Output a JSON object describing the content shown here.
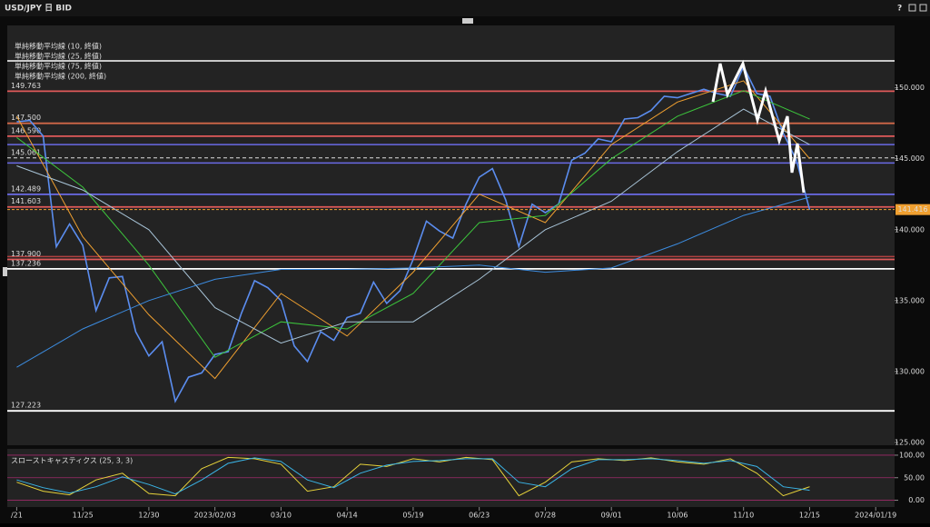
{
  "window": {
    "title": "USD/JPY 日 BID"
  },
  "chart_data": [
    {
      "type": "line",
      "xlim": [
        -5,
        465
      ],
      "ylim": [
        124.8,
        154.4
      ],
      "xticks": [
        {
          "value": 0,
          "label": "/21"
        },
        {
          "value": 35,
          "label": "11/25"
        },
        {
          "value": 70,
          "label": "12/30"
        },
        {
          "value": 105,
          "label": "2023/02/03"
        },
        {
          "value": 140,
          "label": "03/10"
        },
        {
          "value": 175,
          "label": "04/14"
        },
        {
          "value": 210,
          "label": "05/19"
        },
        {
          "value": 245,
          "label": "06/23"
        },
        {
          "value": 280,
          "label": "07/28"
        },
        {
          "value": 315,
          "label": "09/01"
        },
        {
          "value": 350,
          "label": "10/06"
        },
        {
          "value": 385,
          "label": "11/10"
        },
        {
          "value": 420,
          "label": "12/15"
        },
        {
          "value": 455,
          "label": "2024/01/19"
        }
      ],
      "yticks": [
        {
          "value": 125,
          "label": "125.000"
        },
        {
          "value": 130,
          "label": "130.000"
        },
        {
          "value": 135,
          "label": "135.000"
        },
        {
          "value": 140,
          "label": "140.000"
        },
        {
          "value": 145,
          "label": "145.000"
        },
        {
          "value": 150,
          "label": "150.000"
        }
      ],
      "series": [
        {
          "color": "#5b8def",
          "x": [
            0,
            7,
            14,
            21,
            28,
            35,
            42,
            49,
            56,
            63,
            70,
            77,
            84,
            91,
            98,
            105,
            112,
            119,
            126,
            133,
            140,
            147,
            154,
            161,
            168,
            175,
            182,
            189,
            196,
            203,
            210,
            217,
            224,
            231,
            238,
            245,
            252,
            259,
            266,
            273,
            280,
            287,
            294,
            301,
            308,
            315,
            322,
            329,
            336,
            343,
            350,
            357,
            364,
            371,
            378,
            385,
            392,
            399,
            406,
            413,
            420
          ],
          "values": [
            147.6,
            147.7,
            146.6,
            138.8,
            140.4,
            138.9,
            134.3,
            136.6,
            136.7,
            132.8,
            131.1,
            132.1,
            127.9,
            129.6,
            129.9,
            131.2,
            131.4,
            134.1,
            136.4,
            135.9,
            135.0,
            131.8,
            130.7,
            132.8,
            132.2,
            133.8,
            134.1,
            136.3,
            134.8,
            135.7,
            137.9,
            140.6,
            139.9,
            139.4,
            141.8,
            143.7,
            144.3,
            142.1,
            138.8,
            141.8,
            141.2,
            141.8,
            144.9,
            145.4,
            146.4,
            146.2,
            147.8,
            147.9,
            148.4,
            149.4,
            149.3,
            149.6,
            149.9,
            149.6,
            149.4,
            151.5,
            149.6,
            149.4,
            146.8,
            144.9,
            141.4
          ]
        },
        {
          "name": "単純移動平均線 (10, 終値)",
          "color": "#f0a030",
          "x": [
            0,
            35,
            70,
            105,
            140,
            175,
            210,
            245,
            280,
            315,
            350,
            385,
            420
          ],
          "values": [
            148,
            139.5,
            134,
            129.5,
            135.5,
            132.5,
            137,
            142.5,
            140.5,
            146,
            149,
            150.5,
            145
          ]
        },
        {
          "name": "単純移動平均線 (25, 終値)",
          "color": "#3cc43c",
          "x": [
            0,
            35,
            70,
            105,
            140,
            175,
            210,
            245,
            280,
            315,
            350,
            385,
            420
          ],
          "values": [
            146.5,
            143,
            137.5,
            131,
            133.5,
            133,
            135.5,
            140.5,
            141,
            145,
            148,
            149.8,
            147.8
          ]
        },
        {
          "name": "単純移動平均線 (75, 終値)",
          "color": "#a8c4d8",
          "x": [
            0,
            35,
            70,
            105,
            140,
            175,
            210,
            245,
            280,
            315,
            350,
            385,
            420
          ],
          "values": [
            144.5,
            142.8,
            140,
            134.5,
            132,
            133.5,
            133.5,
            136.5,
            140,
            142,
            145.5,
            148.5,
            146
          ]
        },
        {
          "name": "単純移動平均線 (200, 終値)",
          "color": "#3c8ce0",
          "x": [
            0,
            35,
            70,
            105,
            140,
            175,
            210,
            245,
            280,
            315,
            350,
            385,
            420
          ],
          "values": [
            130.3,
            133.0,
            135.0,
            136.5,
            137.2,
            137.2,
            137.3,
            137.5,
            137.0,
            137.3,
            139.0,
            141.0,
            142.3
          ]
        }
      ],
      "levels": [
        {
          "value": 149.763,
          "color": "#e05a5a"
        },
        {
          "value": 147.5,
          "label": "147.500",
          "color": "#d06848"
        },
        {
          "value": 146.59,
          "label": "146.590",
          "color": "#e05a5a"
        },
        {
          "value": 145.061,
          "label": "145.061",
          "color": "#e0e0e0",
          "style": "dashed"
        },
        {
          "value": 142.489,
          "color": "#6a6ae6"
        },
        {
          "value": 141.603,
          "label": "141.603",
          "color": "#e05a5a"
        },
        {
          "value": 137.9,
          "label": "137.900",
          "color": "#e05a5a"
        },
        {
          "value": 137.236,
          "color": "#ffffff"
        },
        {
          "value": 127.223,
          "color": "#ffffff"
        }
      ],
      "extra_levels": [
        {
          "value": 151.9,
          "color": "#ffffff"
        },
        {
          "value": 146.0,
          "color": "#6a6ae6"
        },
        {
          "value": 144.7,
          "color": "#6a6ae6"
        },
        {
          "value": 138.1,
          "color": "#b04040"
        }
      ],
      "last_price": 141.416
    },
    {
      "type": "line",
      "title": "スローストキャスティクス (25, 3, 3)",
      "xlim": [
        -5,
        465
      ],
      "ylim": [
        -15,
        110
      ],
      "yticks": [
        {
          "value": 0,
          "label": "0.00"
        },
        {
          "value": 50,
          "label": "50.00"
        },
        {
          "value": 100,
          "label": "100.00"
        }
      ],
      "x": [
        0,
        14,
        28,
        42,
        56,
        70,
        84,
        98,
        112,
        126,
        140,
        154,
        168,
        182,
        196,
        210,
        224,
        238,
        252,
        266,
        280,
        294,
        308,
        322,
        336,
        350,
        364,
        378,
        392,
        406,
        420
      ],
      "series": [
        {
          "color": "#e6d23a",
          "values": [
            40,
            20,
            12,
            45,
            60,
            15,
            10,
            70,
            95,
            92,
            80,
            20,
            30,
            80,
            75,
            92,
            85,
            95,
            90,
            10,
            40,
            85,
            92,
            88,
            94,
            85,
            80,
            92,
            60,
            10,
            30
          ]
        },
        {
          "color": "#3ab4e6",
          "values": [
            45,
            28,
            16,
            30,
            52,
            35,
            14,
            45,
            82,
            94,
            86,
            45,
            28,
            60,
            78,
            86,
            88,
            92,
            92,
            40,
            30,
            70,
            90,
            90,
            92,
            88,
            82,
            88,
            75,
            30,
            22
          ]
        }
      ]
    }
  ]
}
